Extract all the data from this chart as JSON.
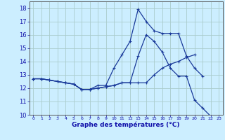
{
  "xlabel": "Graphe des températures (°C)",
  "background_color": "#cceeff",
  "grid_color": "#aacccc",
  "line_color": "#1a3a9a",
  "hours": [
    0,
    1,
    2,
    3,
    4,
    5,
    6,
    7,
    8,
    9,
    10,
    11,
    12,
    13,
    14,
    15,
    16,
    17,
    18,
    19,
    20,
    21,
    22,
    23
  ],
  "temp_actual": [
    12.7,
    12.7,
    12.6,
    12.5,
    12.4,
    12.3,
    11.9,
    11.9,
    12.0,
    12.1,
    12.2,
    12.4,
    12.4,
    14.4,
    16.0,
    15.5,
    14.7,
    13.5,
    12.9,
    12.9,
    11.1,
    10.5,
    9.9,
    9.8
  ],
  "temp_max_curve": [
    12.7,
    12.7,
    12.6,
    12.5,
    12.4,
    12.3,
    11.9,
    11.9,
    12.2,
    12.2,
    13.5,
    14.5,
    15.5,
    17.9,
    17.0,
    16.3,
    16.1,
    16.1,
    16.1,
    14.4,
    13.5,
    12.9,
    null,
    null
  ],
  "temp_min_curve": [
    12.7,
    12.7,
    12.6,
    12.5,
    12.4,
    12.3,
    11.9,
    11.9,
    12.0,
    12.1,
    12.2,
    12.4,
    12.4,
    12.4,
    12.4,
    13.0,
    13.5,
    13.8,
    14.0,
    14.3,
    14.5,
    null,
    null,
    null
  ],
  "ylim_min": 10,
  "ylim_max": 18.5,
  "yticks": [
    10,
    11,
    12,
    13,
    14,
    15,
    16,
    17,
    18
  ],
  "xlim_min": -0.5,
  "xlim_max": 23.5,
  "xtick_labels": [
    "0",
    "1",
    "2",
    "3",
    "4",
    "5",
    "6",
    "7",
    "8",
    "9",
    "10",
    "11",
    "12",
    "13",
    "14",
    "15",
    "16",
    "17",
    "18",
    "19",
    "20",
    "21",
    "22",
    "23"
  ],
  "ylabel_fontsize": 6.5,
  "ytick_fontsize": 6,
  "xtick_fontsize": 4.5,
  "linewidth": 0.9,
  "markersize": 3.5
}
